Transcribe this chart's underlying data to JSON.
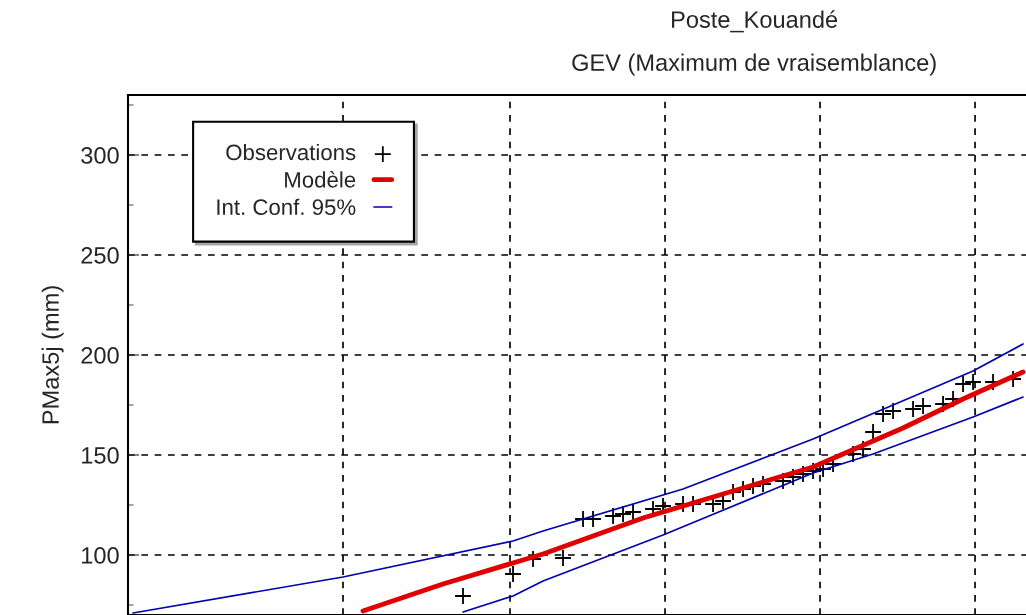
{
  "chart_data": {
    "type": "line",
    "title": "Poste_Kouandé",
    "subtitle": "GEV (Maximum de vraisemblance)",
    "ylabel": "PMax5j (mm)",
    "categories": [
      null,
      null,
      null,
      null,
      null,
      null,
      null,
      null,
      null,
      null,
      null,
      null,
      null,
      null,
      null,
      null,
      null,
      null,
      null,
      null,
      null,
      null,
      null,
      null,
      null,
      null,
      null,
      null,
      null,
      null,
      null,
      null,
      null,
      null,
      null,
      null,
      null,
      null,
      null,
      null,
      null,
      null,
      null,
      null,
      null,
      null,
      null,
      null,
      null,
      null,
      null,
      null,
      null,
      null,
      null,
      null,
      null,
      null,
      null,
      null,
      null,
      null,
      null,
      null,
      null,
      null,
      null,
      null,
      null,
      null,
      null,
      null,
      null,
      null,
      null,
      null,
      null,
      null,
      null,
      null,
      null,
      null,
      null,
      null,
      null,
      null,
      null,
      null,
      null,
      null
    ],
    "ylim": [
      70,
      330
    ],
    "yticks": [
      {
        "value": 75,
        "label": null
      },
      100,
      {
        "value": 125,
        "label": null
      },
      150,
      {
        "value": 175,
        "label": null
      },
      200,
      {
        "value": 225,
        "label": null
      },
      250,
      {
        "value": 275,
        "label": null
      },
      300,
      {
        "value": 325,
        "label": null
      }
    ],
    "grid": true,
    "legend": "top left",
    "series": [
      {
        "name": "Observations",
        "type": "scatter",
        "marker": "cross",
        "color": "#000000",
        "values": [
          null,
          null,
          null,
          null,
          null,
          null,
          null,
          null,
          null,
          null,
          null,
          null,
          null,
          null,
          null,
          null,
          null,
          null,
          null,
          null,
          null,
          null,
          null,
          null,
          null,
          null,
          null,
          null,
          null,
          null,
          null,
          null,
          null,
          79.5,
          null,
          null,
          null,
          null,
          90.5,
          null,
          98,
          null,
          null,
          98.5,
          null,
          118,
          118,
          null,
          119.5,
          120.5,
          121.5,
          null,
          123,
          124.5,
          null,
          125.5,
          125.5,
          null,
          125.5,
          127,
          131.5,
          133,
          134.5,
          135.5,
          null,
          137,
          139,
          140.5,
          142,
          143,
          145.5,
          null,
          150.5,
          153,
          161.5,
          170.5,
          172,
          null,
          173,
          174.5,
          null,
          175.5,
          178,
          185.5,
          186.5,
          null,
          186.5,
          null,
          188,
          null
        ]
      },
      {
        "name": "Modèle",
        "line_style": "solid",
        "color": "#e00000",
        "values": [
          null,
          null,
          null,
          null,
          null,
          null,
          null,
          null,
          null,
          null,
          null,
          null,
          null,
          null,
          null,
          null,
          null,
          null,
          null,
          null,
          null,
          null,
          null,
          72,
          null,
          null,
          null,
          null,
          null,
          null,
          null,
          85.5,
          null,
          null,
          null,
          null,
          null,
          null,
          null,
          null,
          null,
          100.5,
          null,
          null,
          null,
          null,
          null,
          null,
          null,
          null,
          null,
          118.5,
          null,
          null,
          null,
          null,
          null,
          null,
          null,
          130.5,
          null,
          null,
          null,
          null,
          null,
          null,
          null,
          null,
          144,
          null,
          null,
          null,
          null,
          null,
          null,
          null,
          null,
          163.5,
          null,
          null,
          null,
          null,
          null,
          178,
          null,
          null,
          null,
          null,
          null,
          191.5
        ]
      },
      {
        "name": "Int. Conf. 95%",
        "line_style": "solid",
        "color": "#0000b0",
        "values": [
          71,
          null,
          null,
          null,
          null,
          null,
          null,
          null,
          null,
          null,
          null,
          null,
          null,
          null,
          null,
          null,
          null,
          null,
          null,
          null,
          null,
          89,
          null,
          null,
          null,
          null,
          null,
          null,
          null,
          null,
          null,
          null,
          null,
          null,
          null,
          null,
          null,
          null,
          107,
          null,
          null,
          112,
          null,
          null,
          null,
          null,
          null,
          null,
          null,
          null,
          null,
          null,
          null,
          null,
          null,
          133,
          null,
          null,
          null,
          null,
          null,
          null,
          null,
          null,
          null,
          null,
          null,
          null,
          158,
          null,
          null,
          null,
          null,
          null,
          null,
          null,
          null,
          null,
          null,
          null,
          null,
          null,
          null,
          null,
          192,
          null,
          null,
          null,
          null,
          205.5
        ]
      },
      {
        "line_style": "solid",
        "color": "#0000b0",
        "values": [
          null,
          null,
          null,
          null,
          null,
          null,
          null,
          null,
          null,
          null,
          null,
          null,
          null,
          null,
          null,
          null,
          null,
          null,
          null,
          null,
          null,
          null,
          null,
          null,
          null,
          null,
          null,
          null,
          null,
          null,
          null,
          null,
          null,
          71.5,
          null,
          null,
          null,
          null,
          79.5,
          null,
          null,
          87,
          null,
          null,
          null,
          null,
          null,
          null,
          null,
          null,
          null,
          null,
          null,
          110,
          null,
          null,
          null,
          null,
          null,
          null,
          null,
          null,
          null,
          null,
          null,
          null,
          null,
          null,
          141,
          null,
          null,
          null,
          null,
          null,
          150.5,
          null,
          null,
          null,
          null,
          null,
          null,
          null,
          null,
          null,
          169,
          null,
          null,
          null,
          null,
          179
        ]
      }
    ]
  }
}
